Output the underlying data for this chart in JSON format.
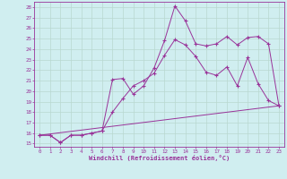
{
  "xlabel": "Windchill (Refroidissement éolien,°C)",
  "bg_color": "#d0eef0",
  "line_color": "#993399",
  "grid_color": "#b8d8d0",
  "xlim": [
    -0.5,
    23.5
  ],
  "ylim": [
    14.7,
    28.5
  ],
  "xticks": [
    0,
    1,
    2,
    3,
    4,
    5,
    6,
    7,
    8,
    9,
    10,
    11,
    12,
    13,
    14,
    15,
    16,
    17,
    18,
    19,
    20,
    21,
    22,
    23
  ],
  "yticks": [
    15,
    16,
    17,
    18,
    19,
    20,
    21,
    22,
    23,
    24,
    25,
    26,
    27,
    28
  ],
  "curve1_x": [
    0,
    1,
    2,
    3,
    4,
    5,
    6,
    7,
    8,
    9,
    10,
    11,
    12,
    13,
    14,
    15,
    16,
    17,
    18,
    19,
    20,
    21,
    22,
    23
  ],
  "curve1_y": [
    15.8,
    15.8,
    15.1,
    15.8,
    15.8,
    16.0,
    16.2,
    21.1,
    21.2,
    19.7,
    20.5,
    22.2,
    24.8,
    28.1,
    26.7,
    24.5,
    24.3,
    24.5,
    25.2,
    24.4,
    25.1,
    25.2,
    24.5,
    18.6
  ],
  "curve2_x": [
    0,
    1,
    2,
    3,
    4,
    5,
    6,
    7,
    8,
    9,
    10,
    11,
    12,
    13,
    14,
    15,
    16,
    17,
    18,
    19,
    20,
    21,
    22,
    23
  ],
  "curve2_y": [
    15.8,
    15.8,
    15.1,
    15.8,
    15.8,
    16.0,
    16.2,
    18.0,
    19.3,
    20.5,
    21.0,
    21.7,
    23.4,
    24.9,
    24.4,
    23.3,
    21.8,
    21.5,
    22.3,
    20.5,
    23.2,
    20.7,
    19.1,
    18.6
  ],
  "curve3_x": [
    0,
    23
  ],
  "curve3_y": [
    15.8,
    18.6
  ]
}
